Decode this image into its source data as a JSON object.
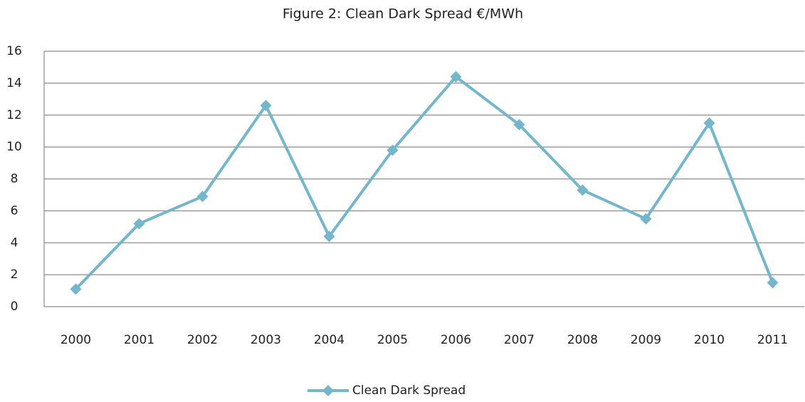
{
  "chart_data": {
    "type": "line",
    "title": "Figure 2: Clean  Dark Spread €/MWh",
    "categories": [
      "2000",
      "2001",
      "2002",
      "2003",
      "2004",
      "2005",
      "2006",
      "2007",
      "2008",
      "2009",
      "2010",
      "2011"
    ],
    "series": [
      {
        "name": "Clean Dark Spread",
        "color": "#74b6cb",
        "marker": "diamond",
        "values": [
          1.1,
          5.2,
          6.9,
          12.6,
          4.4,
          9.8,
          14.4,
          11.4,
          7.3,
          5.5,
          11.5,
          1.5
        ]
      }
    ],
    "ylim": [
      0,
      16
    ],
    "yticks": [
      0,
      2,
      4,
      6,
      8,
      10,
      12,
      14,
      16
    ],
    "grid": true,
    "legend": "bottom"
  }
}
